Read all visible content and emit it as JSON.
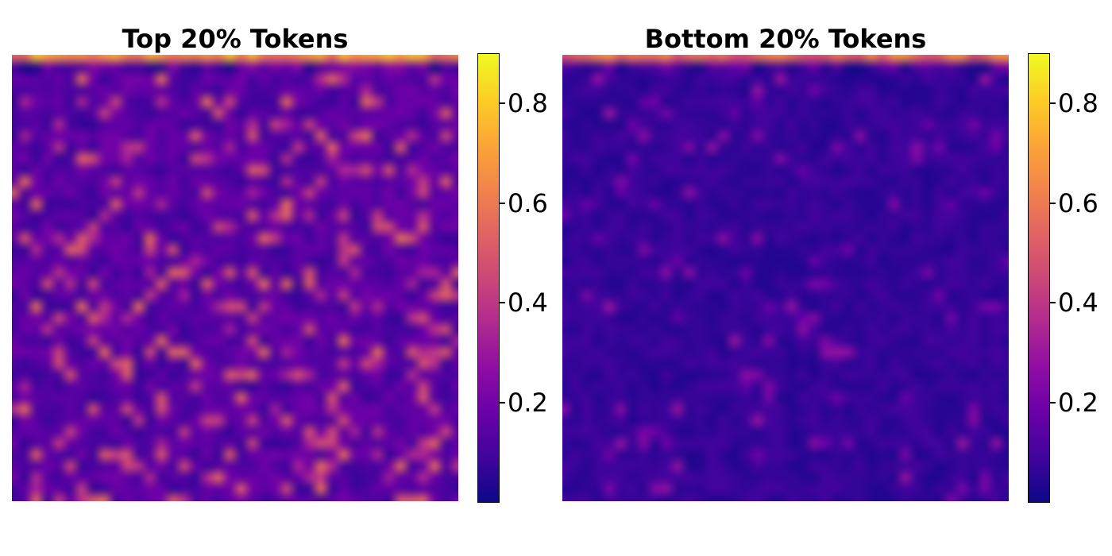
{
  "chart_data": [
    {
      "type": "heatmap",
      "title": "Top 20% Tokens",
      "grid_rows": 40,
      "grid_cols": 40,
      "colormap": "plasma",
      "value_range": [
        0.0,
        0.9
      ],
      "colorbar_ticks": [
        "0.2",
        "0.4",
        "0.6",
        "0.8"
      ],
      "axes_visible": false,
      "pattern": {
        "top_row_mean": 0.72,
        "body_mean": 0.16,
        "hotspot_density": 0.16,
        "hotspot_max": 0.58,
        "seed": 7
      }
    },
    {
      "type": "heatmap",
      "title": "Bottom 20% Tokens",
      "grid_rows": 40,
      "grid_cols": 40,
      "colormap": "plasma",
      "value_range": [
        0.0,
        0.9
      ],
      "colorbar_ticks": [
        "0.2",
        "0.4",
        "0.6",
        "0.8"
      ],
      "axes_visible": false,
      "pattern": {
        "top_row_mean": 0.62,
        "body_mean": 0.08,
        "hotspot_density": 0.07,
        "hotspot_max": 0.3,
        "seed": 19
      }
    }
  ]
}
